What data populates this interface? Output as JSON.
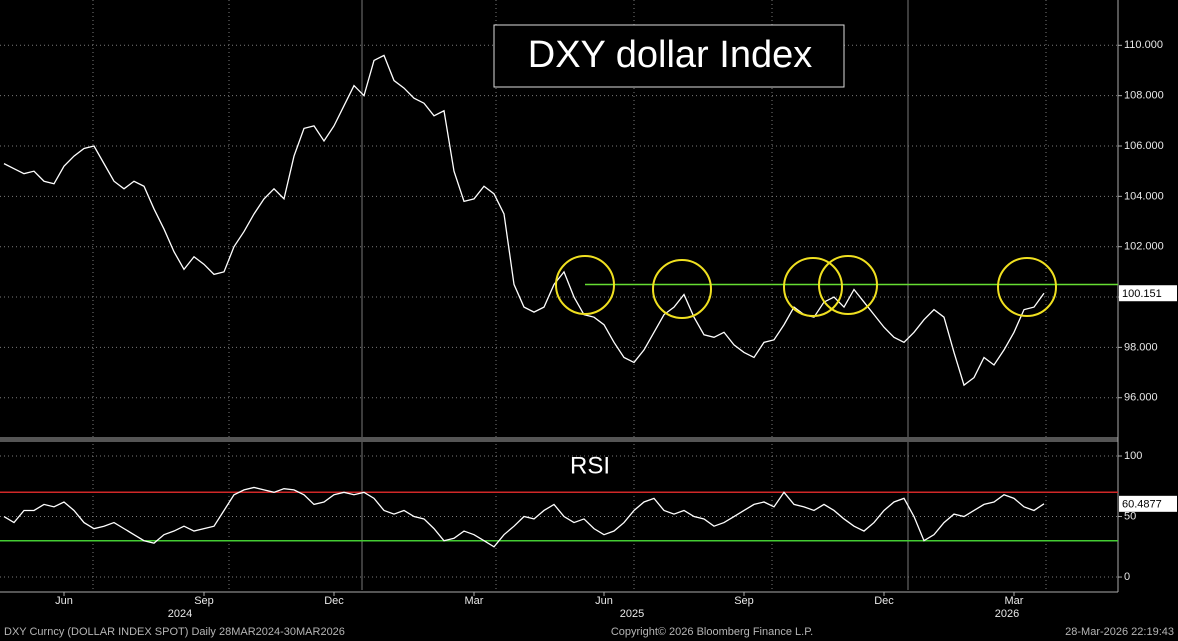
{
  "chart_data": {
    "type": "line",
    "title": "DXY dollar Index",
    "categories": [
      null,
      null,
      null,
      null,
      null,
      null,
      "Jun",
      null,
      null,
      null,
      null,
      null,
      null,
      null,
      null,
      null,
      null,
      null,
      null,
      null,
      "Sep",
      null,
      null,
      null,
      null,
      null,
      null,
      null,
      null,
      null,
      null,
      null,
      null,
      "Dec",
      null,
      null,
      null,
      null,
      null,
      null,
      null,
      null,
      null,
      null,
      null,
      null,
      null,
      "Mar",
      null,
      null,
      null,
      null,
      null,
      null,
      null,
      null,
      null,
      null,
      null,
      null,
      "Jun",
      null,
      null,
      null,
      null,
      null,
      null,
      null,
      null,
      null,
      null,
      null,
      null,
      null,
      "Sep",
      null,
      null,
      null,
      null,
      null,
      null,
      null,
      null,
      null,
      null,
      null,
      null,
      null,
      "Dec",
      null,
      null,
      null,
      null,
      null,
      null,
      null,
      null,
      null,
      null,
      null,
      null,
      "Mar",
      null,
      null,
      null
    ],
    "x_year_labels": [
      "2024",
      "2025",
      "2026"
    ],
    "series": [
      {
        "color": "#ffffff",
        "values": [
          105.3,
          105.1,
          104.9,
          105.0,
          104.6,
          104.5,
          105.2,
          105.6,
          105.9,
          106.0,
          105.3,
          104.6,
          104.3,
          104.6,
          104.4,
          103.5,
          102.7,
          101.8,
          101.1,
          101.6,
          101.3,
          100.9,
          101.0,
          102.0,
          102.6,
          103.3,
          103.9,
          104.3,
          103.9,
          105.6,
          106.7,
          106.8,
          106.2,
          106.8,
          107.6,
          108.4,
          108.0,
          109.4,
          109.6,
          108.6,
          108.3,
          107.9,
          107.7,
          107.2,
          107.4,
          105.0,
          103.8,
          103.9,
          104.4,
          104.1,
          103.3,
          100.5,
          99.6,
          99.4,
          99.6,
          100.5,
          101.0,
          100.0,
          99.3,
          99.2,
          98.9,
          98.2,
          97.6,
          97.4,
          97.9,
          98.6,
          99.3,
          99.6,
          100.1,
          99.2,
          98.5,
          98.4,
          98.6,
          98.1,
          97.8,
          97.6,
          98.2,
          98.3,
          98.9,
          99.6,
          99.3,
          99.2,
          99.8,
          100.0,
          99.6,
          100.3,
          99.8,
          99.3,
          98.8,
          98.4,
          98.2,
          98.6,
          99.1,
          99.5,
          99.2,
          97.8,
          96.5,
          96.8,
          97.6,
          97.3,
          97.9,
          98.6,
          99.5,
          99.6,
          100.151
        ]
      },
      {
        "name": "RSI",
        "axis": "y2",
        "color": "#ffffff",
        "values": [
          50,
          45,
          55,
          55,
          60,
          58,
          62,
          55,
          45,
          40,
          42,
          45,
          40,
          35,
          30,
          28,
          35,
          38,
          42,
          38,
          40,
          42,
          55,
          68,
          72,
          74,
          72,
          70,
          73,
          72,
          68,
          60,
          62,
          68,
          70,
          68,
          70,
          65,
          55,
          52,
          55,
          50,
          48,
          40,
          30,
          32,
          38,
          35,
          30,
          25,
          35,
          42,
          50,
          48,
          55,
          60,
          50,
          45,
          48,
          40,
          35,
          38,
          45,
          55,
          62,
          65,
          55,
          52,
          55,
          50,
          48,
          42,
          45,
          50,
          55,
          60,
          62,
          58,
          70,
          60,
          58,
          55,
          60,
          55,
          48,
          42,
          38,
          45,
          55,
          62,
          65,
          50,
          30,
          35,
          45,
          52,
          50,
          55,
          60,
          62,
          68,
          65,
          58,
          55,
          60.4877
        ]
      }
    ],
    "ylim": [
      94.4,
      111.8
    ],
    "yticks": [
      {
        "value": 96,
        "label": "96.000"
      },
      {
        "value": 98,
        "label": "98.000"
      },
      {
        "value": 100,
        "label": "100.000"
      },
      {
        "value": 102,
        "label": "102.000"
      },
      {
        "value": 104,
        "label": "104.000"
      },
      {
        "value": 106,
        "label": "106.000"
      },
      {
        "value": 108,
        "label": "108.000"
      },
      {
        "value": 110,
        "label": "110.000"
      }
    ],
    "y2lim": [
      -10.7,
      106.6
    ],
    "y2ticks": [
      0,
      50,
      100
    ],
    "grid": true,
    "hlines": [
      {
        "value": 100.5,
        "color": "#66dd33"
      },
      {
        "value": 70,
        "axis": "y2",
        "color": "#d02828"
      },
      {
        "value": 30,
        "axis": "y2",
        "color": "#44cc33"
      }
    ]
  },
  "footer": {
    "left": "DXY Curncy (DOLLAR INDEX SPOT) Daily 28MAR2024-30MAR2026",
    "center": "Copyright© 2026 Bloomberg Finance L.P.",
    "right": "28-Mar-2026 22:19:43"
  }
}
